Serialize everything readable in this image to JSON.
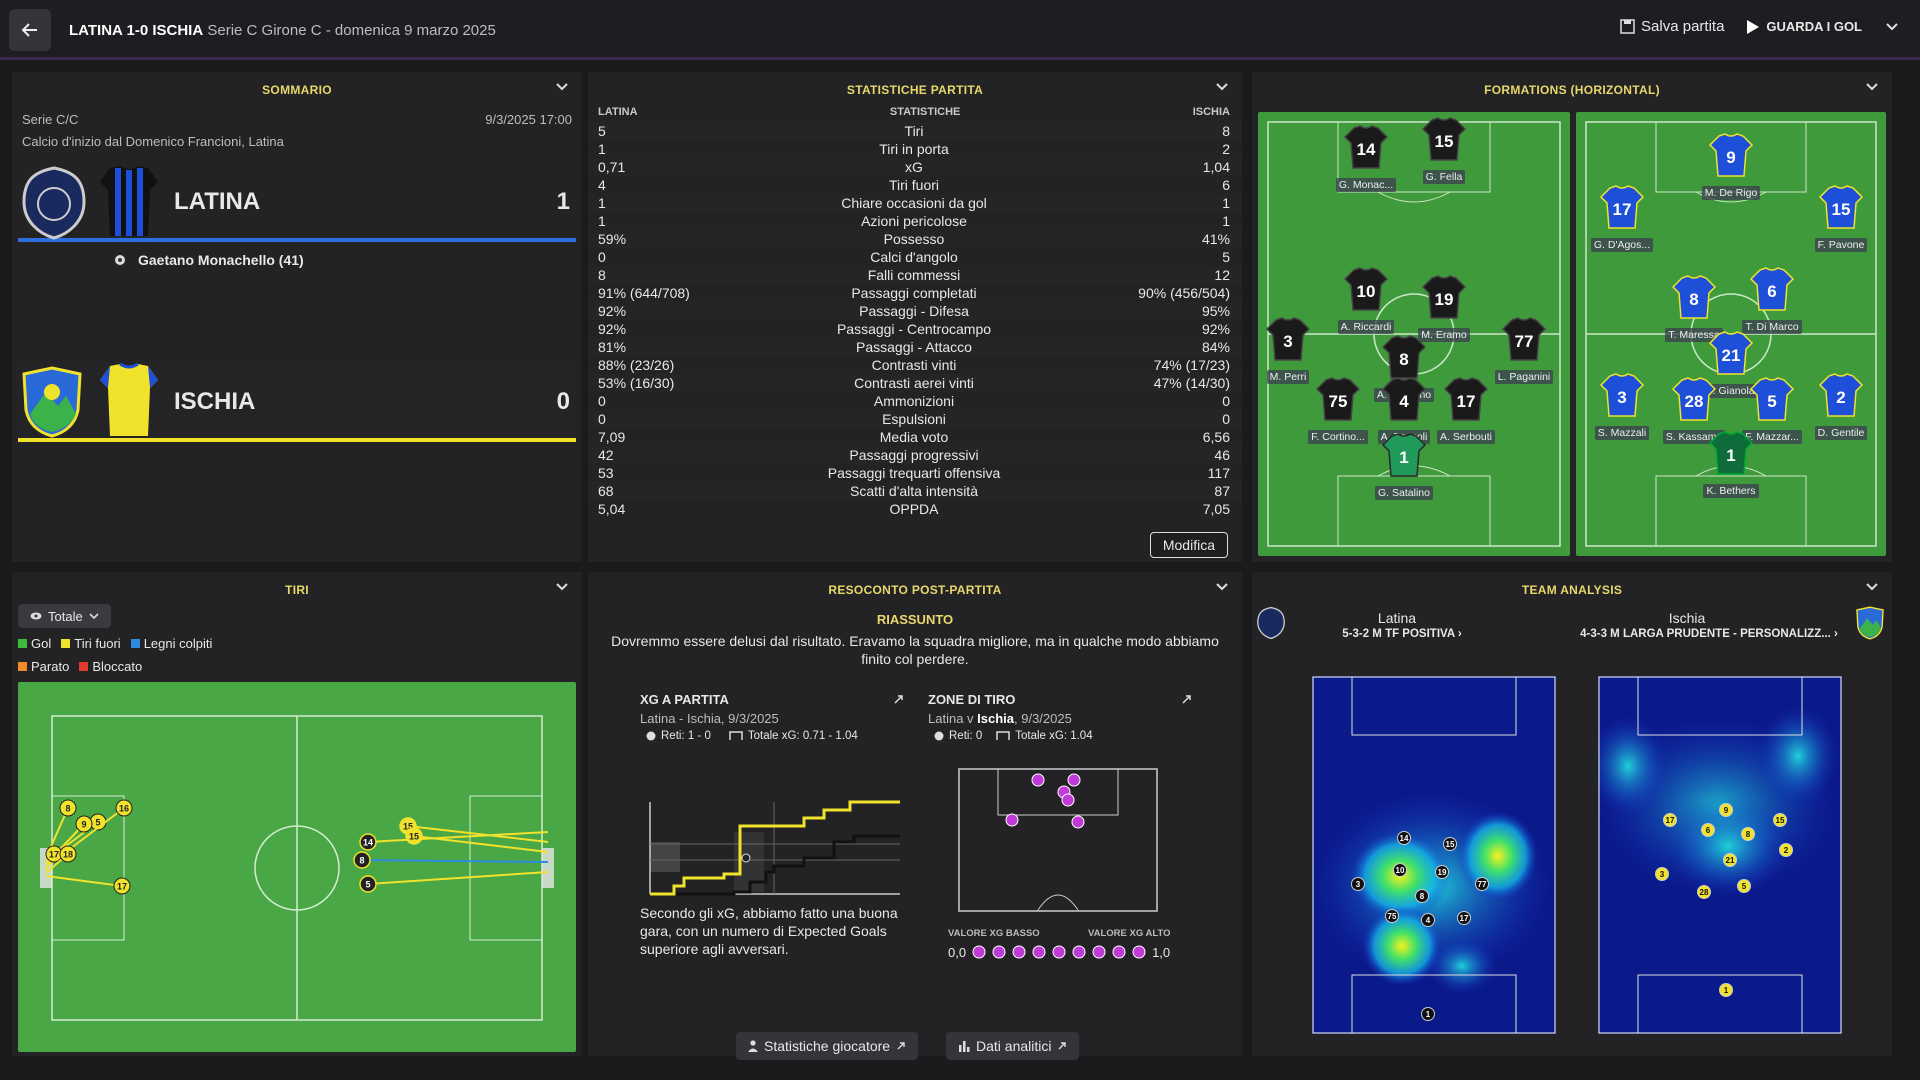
{
  "header": {
    "match": "LATINA 1-0 ISCHIA",
    "subtitle": "Serie C Girone C - domenica 9 marzo 2025",
    "save_label": "Salva partita",
    "goals_label": "GUARDA I GOL"
  },
  "summary": {
    "title": "SOMMARIO",
    "competition": "Serie C/C",
    "datetime": "9/3/2025 17:00",
    "kickoff": "Calcio d'inizio dal Domenico Francioni, Latina",
    "home": {
      "name": "LATINA",
      "score": "1",
      "color": "#2b6fe0"
    },
    "scorer": "Gaetano Monachello (41)",
    "away": {
      "name": "ISCHIA",
      "score": "0",
      "color": "#f1e22b"
    }
  },
  "stats": {
    "title": "STATISTICHE PARTITA",
    "col_home": "LATINA",
    "col_mid": "STATISTICHE",
    "col_away": "ISCHIA",
    "rows": [
      {
        "h": "5",
        "n": "Tiri",
        "a": "8"
      },
      {
        "h": "1",
        "n": "Tiri in porta",
        "a": "2"
      },
      {
        "h": "0,71",
        "n": "xG",
        "a": "1,04"
      },
      {
        "h": "4",
        "n": "Tiri fuori",
        "a": "6"
      },
      {
        "h": "1",
        "n": "Chiare occasioni da gol",
        "a": "1"
      },
      {
        "h": "1",
        "n": "Azioni pericolose",
        "a": "1"
      },
      {
        "h": "59%",
        "n": "Possesso",
        "a": "41%"
      },
      {
        "h": "0",
        "n": "Calci d'angolo",
        "a": "5"
      },
      {
        "h": "8",
        "n": "Falli commessi",
        "a": "12"
      },
      {
        "h": "91% (644/708)",
        "n": "Passaggi completati",
        "a": "90% (456/504)"
      },
      {
        "h": "92%",
        "n": "Passaggi - Difesa",
        "a": "95%"
      },
      {
        "h": "92%",
        "n": "Passaggi - Centrocampo",
        "a": "92%"
      },
      {
        "h": "81%",
        "n": "Passaggi - Attacco",
        "a": "84%"
      },
      {
        "h": "88% (23/26)",
        "n": "Contrasti vinti",
        "a": "74% (17/23)"
      },
      {
        "h": "53% (16/30)",
        "n": "Contrasti aerei vinti",
        "a": "47% (14/30)"
      },
      {
        "h": "0",
        "n": "Ammonizioni",
        "a": "0"
      },
      {
        "h": "0",
        "n": "Espulsioni",
        "a": "0"
      },
      {
        "h": "7,09",
        "n": "Media voto",
        "a": "6,56"
      },
      {
        "h": "42",
        "n": "Passaggi progressivi",
        "a": "46"
      },
      {
        "h": "53",
        "n": "Passaggi trequarti offensiva",
        "a": "117"
      },
      {
        "h": "68",
        "n": "Scatti d'alta intensità",
        "a": "87"
      },
      {
        "h": "5,04",
        "n": "OPPDA",
        "a": "7,05"
      }
    ],
    "edit_label": "Modifica"
  },
  "formations": {
    "title": "FORMATIONS (HORIZONTAL)",
    "home_players": [
      {
        "num": "14",
        "name": "G. Monac..."
      },
      {
        "num": "15",
        "name": "G. Fella"
      },
      {
        "num": "10",
        "name": "A. Riccardi"
      },
      {
        "num": "19",
        "name": "M. Eramo"
      },
      {
        "num": "3",
        "name": "M. Perri"
      },
      {
        "num": "8",
        "name": "A. Cittadino"
      },
      {
        "num": "77",
        "name": "L. Paganini"
      },
      {
        "num": "75",
        "name": "F. Cortino..."
      },
      {
        "num": "4",
        "name": "A. Bassoli"
      },
      {
        "num": "17",
        "name": "A. Serbouti"
      },
      {
        "num": "1",
        "name": "G. Satalino"
      }
    ],
    "away_players": [
      {
        "num": "9",
        "name": "M. De Rigo"
      },
      {
        "num": "17",
        "name": "G. D'Agos..."
      },
      {
        "num": "15",
        "name": "F. Pavone"
      },
      {
        "num": "8",
        "name": "T. Maressa"
      },
      {
        "num": "6",
        "name": "T. Di Marco"
      },
      {
        "num": "21",
        "name": "F. Gianola"
      },
      {
        "num": "3",
        "name": "S. Mazzali"
      },
      {
        "num": "28",
        "name": "S. Kassama"
      },
      {
        "num": "5",
        "name": "F. Mazzar..."
      },
      {
        "num": "2",
        "name": "D. Gentile"
      },
      {
        "num": "1",
        "name": "K. Bethers"
      }
    ]
  },
  "shots": {
    "title": "TIRI",
    "filter": "Totale",
    "legend": [
      {
        "label": "Gol",
        "color": "#3dbb3d"
      },
      {
        "label": "Tiri fuori",
        "color": "#f1e22b"
      },
      {
        "label": "Legni colpiti",
        "color": "#2e8be0"
      },
      {
        "label": "Parato",
        "color": "#f08a24"
      },
      {
        "label": "Bloccato",
        "color": "#e03a2e"
      }
    ],
    "home_numbers": [
      "8",
      "5",
      "9",
      "16",
      "17",
      "18",
      "17"
    ],
    "away_numbers": [
      "14",
      "15",
      "15",
      "8",
      "5"
    ]
  },
  "report": {
    "title": "RESOCONTO POST-PARTITA",
    "summary_title": "RIASSUNTO",
    "summary_text": "Dovremmo essere delusi dal risultato. Eravamo la squadra migliore, ma in qualche modo abbiamo finito col perdere.",
    "xg": {
      "title": "XG A PARTITA",
      "teams": "Latina - Ischia, 9/3/2025",
      "goals": "Reti: 1 - 0",
      "total": "Totale xG: 0.71 - 1.04",
      "note": "Secondo gli xG, abbiamo fatto una buona gara, con un numero di Expected Goals superiore agli avversari."
    },
    "zones": {
      "title": "ZONE DI TIRO",
      "teams_pre": "Latina v ",
      "teams_team": "Ischia",
      "teams_post": ", 9/3/2025",
      "goals": "Reti: 0",
      "total": "Totale xG: 1.04",
      "low_label": "VALORE XG BASSO",
      "high_label": "VALORE XG ALTO",
      "scale_min": "0,0",
      "scale_max": "1,0"
    },
    "btn_players": "Statistiche giocatore",
    "btn_analytics": "Dati analitici"
  },
  "analysis": {
    "title": "TEAM ANALYSIS",
    "home_name": "Latina",
    "home_tactic": "5-3-2 M TF POSITIVA",
    "away_name": "Ischia",
    "away_tactic": "4-3-3 M LARGA PRUDENTE - PERSONALIZZ...",
    "home_nums": [
      "14",
      "15",
      "10",
      "19",
      "77",
      "3",
      "8",
      "75",
      "4",
      "17",
      "1"
    ],
    "away_nums": [
      "9",
      "17",
      "6",
      "8",
      "15",
      "2",
      "21",
      "3",
      "28",
      "5",
      "1"
    ]
  }
}
